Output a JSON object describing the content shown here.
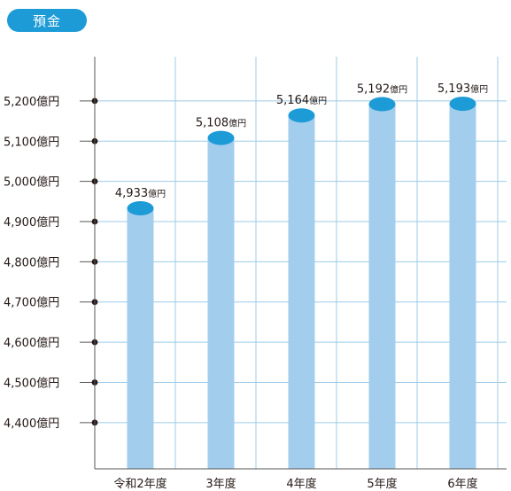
{
  "badge": {
    "label": "預金",
    "color": "#1d9bd7"
  },
  "chart_data": {
    "type": "bar",
    "title": "",
    "xlabel": "",
    "ylabel": "",
    "unit": "億円",
    "categories": [
      "令和2年度",
      "3年度",
      "4年度",
      "5年度",
      "6年度"
    ],
    "values": [
      4933,
      5108,
      5164,
      5192,
      5193
    ],
    "data_labels": [
      "4,933億円",
      "5,108億円",
      "5,164億円",
      "5,192億円",
      "5,193億円"
    ],
    "yticks": [
      4400,
      4500,
      4600,
      4700,
      4800,
      4900,
      5000,
      5100,
      5200
    ],
    "ytick_labels": [
      "4,400億円",
      "4,500億円",
      "4,600億円",
      "4,700億円",
      "4,800億円",
      "4,900億円",
      "5,000億円",
      "5,100億円",
      "5,200億円"
    ],
    "ylim": [
      4285,
      5310
    ],
    "grid": true,
    "colors": {
      "bar": "#a3cded",
      "bar_cap": "#1d9bd7",
      "grid": "#9ccbe8",
      "axis": "#595757",
      "tick_dot": "#231815"
    }
  }
}
